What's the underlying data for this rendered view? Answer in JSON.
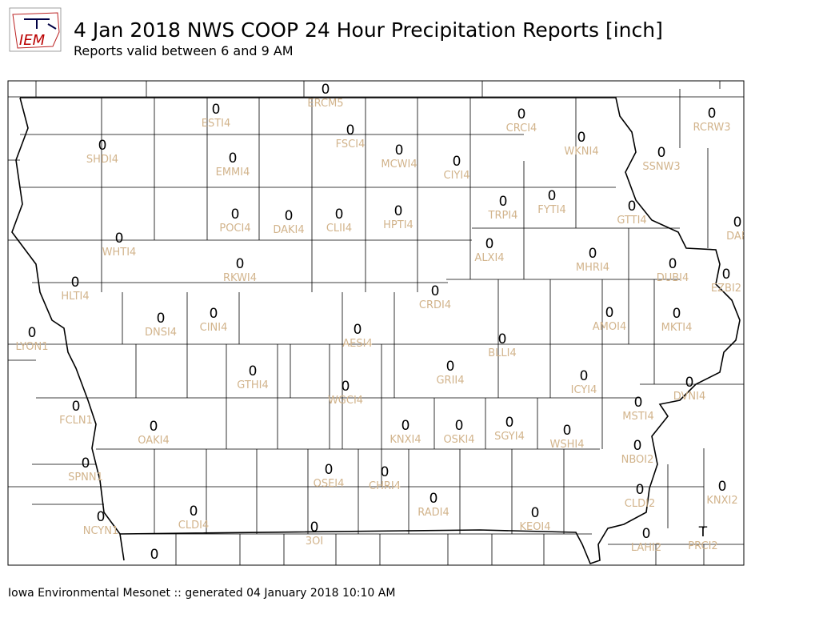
{
  "header": {
    "logo_text": "IEM",
    "title": "4 Jan 2018 NWS COOP 24 Hour Precipitation Reports [inch]",
    "subtitle": "Reports valid between 6 and 9 AM"
  },
  "stations": [
    {
      "id": "ERCM5",
      "value": 0
    },
    {
      "id": "ESTI4",
      "value": 0
    },
    {
      "id": "FSCI4",
      "value": 0
    },
    {
      "id": "CRCI4",
      "value": 0
    },
    {
      "id": "WKNI4",
      "value": 0
    },
    {
      "id": "RCRW3",
      "value": 0
    },
    {
      "id": "SHDI4",
      "value": 0
    },
    {
      "id": "EMMI4",
      "value": 0
    },
    {
      "id": "MCWI4",
      "value": 0
    },
    {
      "id": "CIYI4",
      "value": 0
    },
    {
      "id": "SSNW3",
      "value": 0
    },
    {
      "id": "POCI4",
      "value": 0
    },
    {
      "id": "DAKI4",
      "value": 0
    },
    {
      "id": "CLII4",
      "value": 0
    },
    {
      "id": "HPTI4",
      "value": 0
    },
    {
      "id": "TRPI4",
      "value": 0
    },
    {
      "id": "FYTI4",
      "value": 0
    },
    {
      "id": "GTTI4",
      "value": 0
    },
    {
      "id": "DAR",
      "value": 0
    },
    {
      "id": "WHTI4",
      "value": 0
    },
    {
      "id": "ALXI4",
      "value": 0
    },
    {
      "id": "MHRI4",
      "value": 0
    },
    {
      "id": "DUBI4",
      "value": 0
    },
    {
      "id": "EZBI2",
      "value": 0
    },
    {
      "id": "RKWI4",
      "value": 0
    },
    {
      "id": "HLTI4",
      "value": 0
    },
    {
      "id": "CRDI4",
      "value": 0
    },
    {
      "id": "DNSI4",
      "value": 0
    },
    {
      "id": "CINI4",
      "value": 0
    },
    {
      "id": "AMOI4",
      "value": 0
    },
    {
      "id": "MKTI4",
      "value": 0
    },
    {
      "id": "LYON1",
      "value": 0
    },
    {
      "id": "AESI4",
      "value": 0
    },
    {
      "id": "BLLI4",
      "value": 0
    },
    {
      "id": "GTHI4",
      "value": 0
    },
    {
      "id": "GRII4",
      "value": 0
    },
    {
      "id": "ICYI4",
      "value": 0
    },
    {
      "id": "DVNI4",
      "value": 0
    },
    {
      "id": "WGCI4",
      "value": 0
    },
    {
      "id": "FCLN1",
      "value": 0
    },
    {
      "id": "MSTI4",
      "value": 0
    },
    {
      "id": "OAKI4",
      "value": 0
    },
    {
      "id": "KNXI4",
      "value": 0
    },
    {
      "id": "OSKI4",
      "value": 0
    },
    {
      "id": "SGYI4",
      "value": 0
    },
    {
      "id": "WSHI4",
      "value": 0
    },
    {
      "id": "NBOI2",
      "value": 0
    },
    {
      "id": "SPNN1",
      "value": 0
    },
    {
      "id": "OSEI4",
      "value": 0
    },
    {
      "id": "CHRI4",
      "value": 0
    },
    {
      "id": "KNXI2",
      "value": 0
    },
    {
      "id": "CLDI2",
      "value": 0
    },
    {
      "id": "RADI4",
      "value": 0
    },
    {
      "id": "CLDI4",
      "value": 0
    },
    {
      "id": "KEOI4",
      "value": 0
    },
    {
      "id": "NCYN1",
      "value": 0
    },
    {
      "id": "3OI",
      "value": 0
    },
    {
      "id": "LAHI2",
      "value": 0
    },
    {
      "id": "PRCI2",
      "value": "T"
    },
    {
      "value": 0
    }
  ],
  "footer": {
    "text": "Iowa Environmental Mesonet :: generated 04 January 2018 10:10 AM"
  }
}
